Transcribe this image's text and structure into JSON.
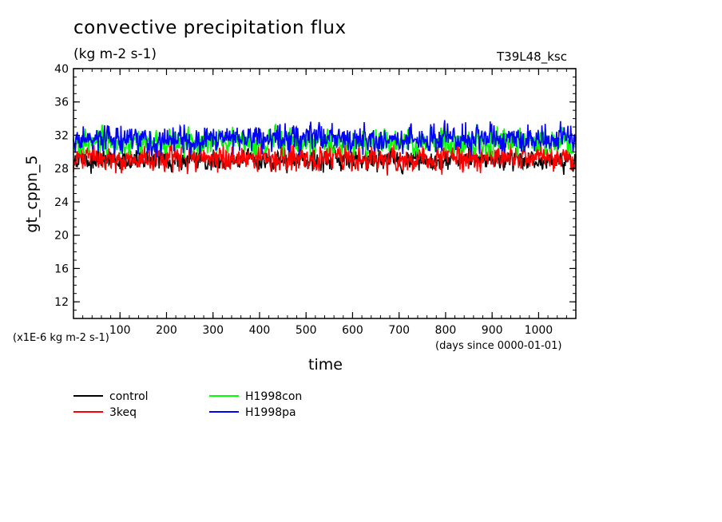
{
  "chart_data": {
    "type": "line",
    "title": "convective precipitation flux",
    "units": "(kg m-2 s-1)",
    "experiment": "T39L48_ksc",
    "ylabel": "gt_cppn_5",
    "xlabel": "time",
    "x_units": "(days since 0000-01-01)",
    "scale_note": "(x1E-6 kg m-2 s-1)",
    "xlim": [
      0,
      1080
    ],
    "ylim": [
      10,
      40
    ],
    "x_ticks": [
      "100",
      "200",
      "300",
      "400",
      "500",
      "600",
      "700",
      "800",
      "900",
      "1000"
    ],
    "y_ticks": [
      "12",
      "16",
      "20",
      "24",
      "28",
      "32",
      "36",
      "40"
    ],
    "series": [
      {
        "name": "control",
        "color": "#000000",
        "mean": 29.0,
        "spread": 1.1,
        "min": 25.8,
        "max": 32.0
      },
      {
        "name": "3keq",
        "color": "#ff0000",
        "mean": 29.3,
        "spread": 1.4,
        "min": 25.2,
        "max": 34.2
      },
      {
        "name": "H1998con",
        "color": "#00ff00",
        "mean": 31.2,
        "spread": 1.4,
        "min": 28.0,
        "max": 35.8
      },
      {
        "name": "H1998pa",
        "color": "#0000ff",
        "mean": 31.6,
        "spread": 1.5,
        "min": 27.8,
        "max": 36.6
      }
    ]
  }
}
